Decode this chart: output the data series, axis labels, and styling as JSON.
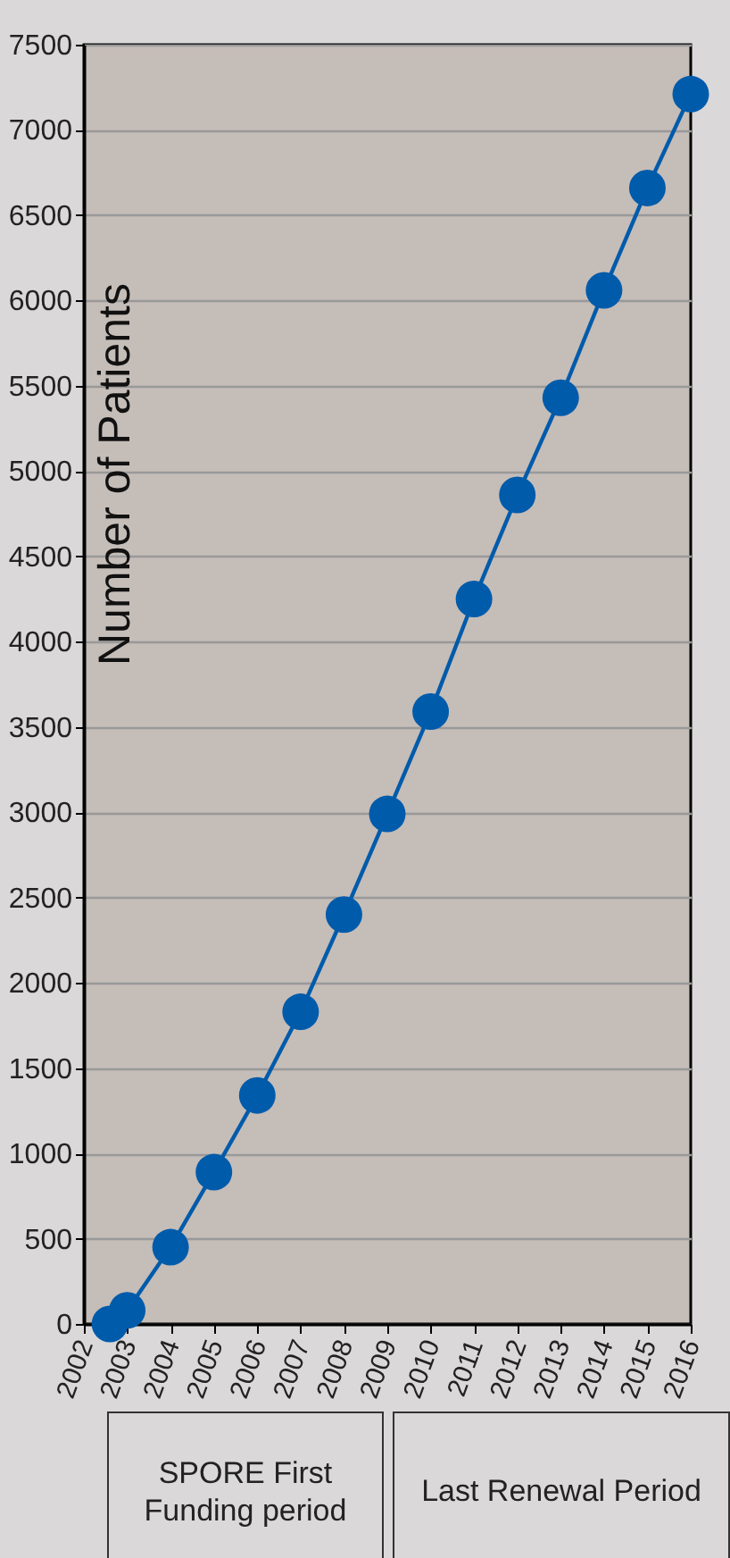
{
  "chart_data": {
    "type": "line",
    "ylabel": "Number of Patients",
    "x": [
      2002.6,
      2003,
      2004,
      2005,
      2006,
      2007,
      2008,
      2009,
      2010,
      2011,
      2012,
      2013,
      2014,
      2015,
      2016
    ],
    "series": [
      {
        "color": "#005bab",
        "values": [
          0,
          80,
          450,
          890,
          1340,
          1830,
          2400,
          2990,
          3590,
          4250,
          4860,
          5430,
          6060,
          6660,
          7210
        ]
      }
    ],
    "xlim": [
      2002,
      2016
    ],
    "xticks": [
      2002,
      2003,
      2004,
      2005,
      2006,
      2007,
      2008,
      2009,
      2010,
      2011,
      2012,
      2013,
      2014,
      2015,
      2016
    ],
    "ylim": [
      0,
      7500
    ],
    "yticks": [
      0,
      500,
      1000,
      1500,
      2000,
      2500,
      3000,
      3500,
      4000,
      4500,
      5000,
      5500,
      6000,
      6500,
      7000,
      7500
    ],
    "grid": "y",
    "marker": "circle",
    "line_style": "solid",
    "annotations": [
      "SPORE First Funding period",
      "Last Renewal Period"
    ]
  }
}
